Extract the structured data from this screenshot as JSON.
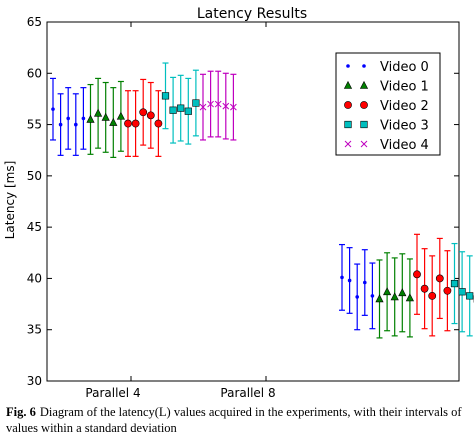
{
  "chart_data": {
    "type": "scatter",
    "title": "Latency Results",
    "xlabel": "",
    "ylabel": "Latency [ms]",
    "ylim": [
      30,
      65
    ],
    "yticks": [
      30,
      35,
      40,
      45,
      50,
      55,
      60,
      65
    ],
    "categories": [
      "Parallel 4",
      "Parallel 8"
    ],
    "grid": false,
    "legend_position": "top-right",
    "series": [
      {
        "name": "Video 0",
        "color": "#0000ff",
        "marker": "dot",
        "groups": [
          {
            "category": "Parallel 4",
            "points": [
              {
                "y": 56.5,
                "err": 3.0
              },
              {
                "y": 55.0,
                "err": 3.0
              },
              {
                "y": 55.6,
                "err": 3.0
              },
              {
                "y": 55.0,
                "err": 3.0
              },
              {
                "y": 55.6,
                "err": 3.0
              }
            ]
          },
          {
            "category": "Parallel 8",
            "points": [
              {
                "y": 40.1,
                "err": 3.2
              },
              {
                "y": 39.8,
                "err": 3.2
              },
              {
                "y": 38.2,
                "err": 3.2
              },
              {
                "y": 39.6,
                "err": 3.2
              },
              {
                "y": 38.3,
                "err": 3.2
              }
            ]
          }
        ]
      },
      {
        "name": "Video 1",
        "color": "#008000",
        "marker": "triangle",
        "groups": [
          {
            "category": "Parallel 4",
            "points": [
              {
                "y": 55.5,
                "err": 3.4
              },
              {
                "y": 56.1,
                "err": 3.4
              },
              {
                "y": 55.7,
                "err": 3.4
              },
              {
                "y": 55.2,
                "err": 3.4
              },
              {
                "y": 55.8,
                "err": 3.4
              }
            ]
          },
          {
            "category": "Parallel 8",
            "points": [
              {
                "y": 38.0,
                "err": 3.8
              },
              {
                "y": 38.7,
                "err": 3.8
              },
              {
                "y": 38.2,
                "err": 3.8
              },
              {
                "y": 38.6,
                "err": 3.8
              },
              {
                "y": 38.1,
                "err": 3.8
              }
            ]
          }
        ]
      },
      {
        "name": "Video 2",
        "color": "#ff0000",
        "marker": "circle",
        "groups": [
          {
            "category": "Parallel 4",
            "points": [
              {
                "y": 55.1,
                "err": 3.2
              },
              {
                "y": 55.1,
                "err": 3.2
              },
              {
                "y": 56.2,
                "err": 3.2
              },
              {
                "y": 55.9,
                "err": 3.2
              },
              {
                "y": 55.1,
                "err": 3.2
              }
            ]
          },
          {
            "category": "Parallel 8",
            "points": [
              {
                "y": 40.4,
                "err": 3.9
              },
              {
                "y": 39.0,
                "err": 3.9
              },
              {
                "y": 38.3,
                "err": 3.9
              },
              {
                "y": 40.0,
                "err": 3.9
              },
              {
                "y": 38.8,
                "err": 3.9
              }
            ]
          }
        ]
      },
      {
        "name": "Video 3",
        "color": "#00bfbf",
        "marker": "square",
        "groups": [
          {
            "category": "Parallel 4",
            "points": [
              {
                "y": 57.8,
                "err": 3.2
              },
              {
                "y": 56.4,
                "err": 3.2
              },
              {
                "y": 56.6,
                "err": 3.2
              },
              {
                "y": 56.3,
                "err": 3.2
              },
              {
                "y": 57.1,
                "err": 3.2
              }
            ]
          },
          {
            "category": "Parallel 8",
            "points": [
              {
                "y": 39.5,
                "err": 3.9
              },
              {
                "y": 38.7,
                "err": 3.9
              },
              {
                "y": 38.3,
                "err": 3.9
              },
              {
                "y": 38.0,
                "err": 3.9
              },
              {
                "y": 39.0,
                "err": 3.9
              }
            ]
          }
        ]
      },
      {
        "name": "Video 4",
        "color": "#bf00bf",
        "marker": "x",
        "groups": [
          {
            "category": "Parallel 4",
            "points": [
              {
                "y": 56.7,
                "err": 3.2
              },
              {
                "y": 57.0,
                "err": 3.2
              },
              {
                "y": 57.0,
                "err": 3.2
              },
              {
                "y": 56.8,
                "err": 3.2
              },
              {
                "y": 56.7,
                "err": 3.2
              }
            ]
          },
          {
            "category": "Parallel 8",
            "points": [
              {
                "y": 39.2,
                "err": 5.0
              },
              {
                "y": 38.5,
                "err": 5.0
              },
              {
                "y": 39.2,
                "err": 5.0
              },
              {
                "y": 38.5,
                "err": 5.0
              },
              {
                "y": 39.8,
                "err": 5.0
              }
            ]
          }
        ]
      }
    ]
  },
  "caption": {
    "label": "Fig. 6",
    "text": "Diagram of the latency(L) values acquired in the experiments, with their intervals of values within a standard deviation"
  }
}
